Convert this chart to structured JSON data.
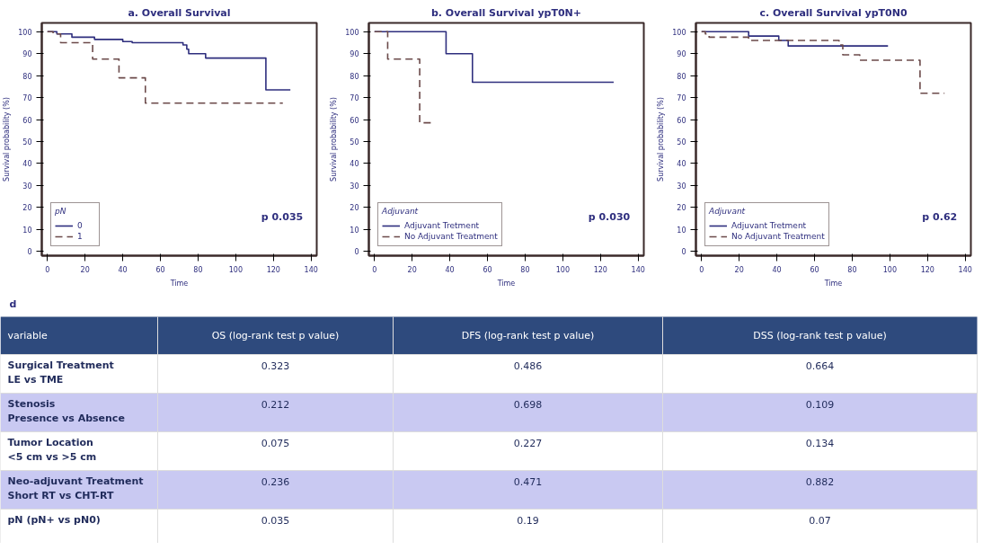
{
  "chart_data": [
    {
      "type": "step",
      "title": "a. Overall Survival",
      "xlabel": "Time",
      "ylabel": "Survival probability (%)",
      "legend_title": "pN",
      "legend": "bottom left",
      "grid": false,
      "xlim": [
        -3,
        143
      ],
      "ylim": [
        -2,
        104
      ],
      "xticks": [
        0,
        20,
        40,
        60,
        80,
        100,
        120,
        140
      ],
      "yticks": [
        0,
        10,
        20,
        30,
        40,
        50,
        60,
        70,
        80,
        90,
        100
      ],
      "annotations": [
        "p 0.035"
      ],
      "series": [
        {
          "name": "0",
          "color": "#2e2e7e",
          "line_style": "solid",
          "x": [
            0,
            5,
            13,
            25,
            40,
            45,
            72,
            74,
            75,
            84,
            116,
            129
          ],
          "values": [
            100,
            99,
            97.5,
            96.5,
            95.5,
            95,
            94,
            92,
            90,
            88,
            73.5,
            73.5
          ]
        },
        {
          "name": "1",
          "color": "#6b4a4a",
          "line_style": "dashed",
          "x": [
            0,
            3,
            7,
            24,
            38,
            52,
            125
          ],
          "values": [
            100,
            99,
            95,
            87.5,
            79,
            67.5,
            67.5
          ]
        }
      ]
    },
    {
      "type": "step",
      "title": "b. Overall Survival ypT0N+",
      "xlabel": "Time",
      "ylabel": "Survival probability (%)",
      "legend_title": "Adjuvant",
      "legend": "bottom left",
      "grid": false,
      "xlim": [
        -3,
        143
      ],
      "ylim": [
        -2,
        104
      ],
      "xticks": [
        0,
        20,
        40,
        60,
        80,
        100,
        120,
        140
      ],
      "yticks": [
        0,
        10,
        20,
        30,
        40,
        50,
        60,
        70,
        80,
        90,
        100
      ],
      "annotations": [
        "p 0.030"
      ],
      "series": [
        {
          "name": "Adjuvant Tretment",
          "color": "#2e2e7e",
          "line_style": "solid",
          "x": [
            0,
            38,
            52,
            127
          ],
          "values": [
            100,
            90,
            77,
            77
          ]
        },
        {
          "name": "No Adjuvant Treatment",
          "color": "#6b4a4a",
          "line_style": "dashed",
          "x": [
            0,
            7,
            24,
            30
          ],
          "values": [
            100,
            87.5,
            58.5,
            58.5
          ]
        }
      ]
    },
    {
      "type": "step",
      "title": "c. Overall Survival ypT0N0",
      "xlabel": "Time",
      "ylabel": "Survival probability (%)",
      "legend_title": "Adjuvant",
      "legend": "bottom left",
      "grid": false,
      "xlim": [
        -3,
        143
      ],
      "ylim": [
        -2,
        104
      ],
      "xticks": [
        0,
        20,
        40,
        60,
        80,
        100,
        120,
        140
      ],
      "yticks": [
        0,
        10,
        20,
        30,
        40,
        50,
        60,
        70,
        80,
        90,
        100
      ],
      "annotations": [
        "p 0.62"
      ],
      "series": [
        {
          "name": "Adjuvant Tretment",
          "color": "#2e2e7e",
          "line_style": "solid",
          "x": [
            0,
            25,
            41,
            46,
            99
          ],
          "values": [
            100,
            98,
            96,
            93.5,
            93.5
          ]
        },
        {
          "name": "No Adjuvant Treatment",
          "color": "#6b4a4a",
          "line_style": "dashed",
          "x": [
            0,
            2,
            4,
            25,
            73,
            75,
            84,
            116,
            129
          ],
          "values": [
            100,
            99,
            97.5,
            96,
            94,
            89.5,
            87,
            72,
            72
          ]
        }
      ]
    },
    {
      "type": "other",
      "title": "d",
      "colors": [
        "#2e4a7d",
        "#ffffff",
        "#c9c9f2"
      ],
      "categories": [
        "variable",
        "OS (log-rank test p value)",
        "DFS (log-rank test p value)",
        "DSS (log-rank test p value)"
      ],
      "annotations": [
        "Surgical Treatment\nLE vs TME",
        "0.323",
        "0.486",
        "0.664",
        "Stenosis\nPresence vs Absence",
        "0.212",
        "0.698",
        "0.109",
        "Tumor Location\n<5 cm vs  >5 cm",
        "0.075",
        "0.227",
        "0.134",
        "Neo-adjuvant Treatment\nShort RT vs CHT-RT",
        "0.236",
        "0.471",
        "0.882",
        "pN (pN+ vs pN0)",
        "0.035",
        "0.19",
        "0.07"
      ]
    }
  ]
}
